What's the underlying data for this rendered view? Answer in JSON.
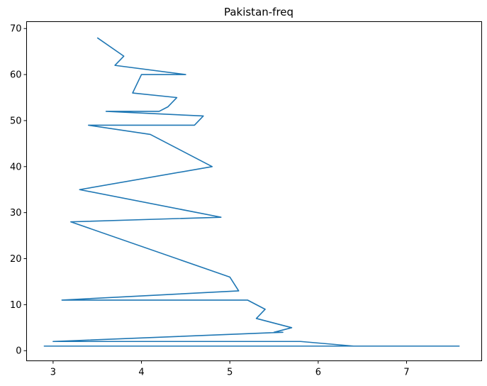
{
  "chart_data": {
    "type": "line",
    "title": "Pakistan-freq",
    "xlabel": "",
    "ylabel": "",
    "xlim": [
      2.7,
      7.85
    ],
    "ylim": [
      -2.2,
      71.5
    ],
    "xticks": [
      3,
      4,
      5,
      6,
      7
    ],
    "yticks": [
      0,
      10,
      20,
      30,
      40,
      50,
      60,
      70
    ],
    "xtick_labels": [
      "3",
      "4",
      "5",
      "6",
      "7"
    ],
    "ytick_labels": [
      "0",
      "10",
      "20",
      "30",
      "40",
      "50",
      "60",
      "70"
    ],
    "grid": false,
    "legend": "none",
    "series": [
      {
        "color": "#1f77b4",
        "x": [
          3.5,
          3.8,
          3.7,
          4.5,
          4.0,
          3.9,
          4.4,
          4.3,
          4.2,
          3.6,
          4.7,
          4.6,
          3.4,
          4.1,
          4.8,
          3.3,
          4.9,
          3.2,
          5.0,
          5.1,
          3.1,
          5.2,
          5.4,
          5.3,
          5.7,
          5.5,
          5.6,
          3.0,
          5.8,
          6.4,
          2.9,
          7.6
        ],
        "y": [
          68,
          64,
          62,
          60,
          60,
          56,
          55,
          53,
          52,
          52,
          51,
          49,
          49,
          47,
          40,
          35,
          29,
          28,
          16,
          13,
          11,
          11,
          9,
          7,
          5,
          4,
          4,
          2,
          2,
          1,
          1,
          1
        ]
      }
    ]
  }
}
